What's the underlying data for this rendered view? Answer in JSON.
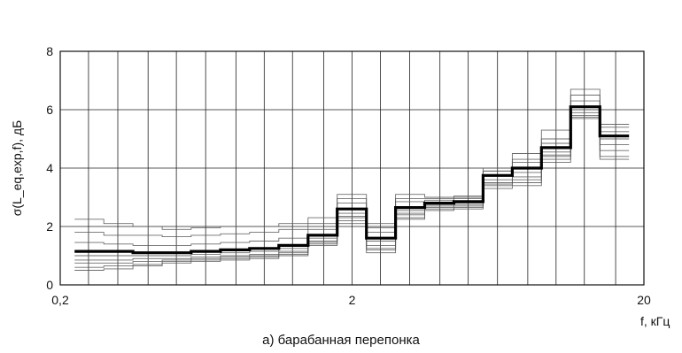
{
  "chart_data": {
    "type": "line",
    "step": true,
    "x_scale": "log",
    "xlim": [
      0.2,
      20
    ],
    "ylim": [
      0,
      8
    ],
    "x_ticks": [
      {
        "value": 0.2,
        "label": "0,2"
      },
      {
        "value": 2,
        "label": "2"
      },
      {
        "value": 20,
        "label": "20"
      }
    ],
    "y_ticks": [
      0,
      2,
      4,
      6,
      8
    ],
    "x_gridlines": [
      0.2,
      0.25,
      0.315,
      0.4,
      0.5,
      0.63,
      0.8,
      1.0,
      1.25,
      1.6,
      2,
      2.5,
      3.15,
      4.0,
      5.0,
      6.3,
      8.0,
      10.0,
      12.5,
      16.0
    ],
    "xlabel": "f, кГц",
    "ylabel": "σ(L_eq,exp,f), дБ",
    "caption": "а) барабанная перепонка",
    "grid": true,
    "band_edges": [
      0.224,
      0.282,
      0.355,
      0.447,
      0.562,
      0.708,
      0.891,
      1.122,
      1.413,
      1.778,
      2.239,
      2.818,
      3.548,
      4.467,
      5.623,
      7.079,
      8.913,
      11.22,
      14.13,
      17.78
    ],
    "series": [
      {
        "style": "thick",
        "values": [
          1.15,
          1.15,
          1.1,
          1.1,
          1.15,
          1.2,
          1.25,
          1.35,
          1.7,
          2.6,
          1.6,
          2.65,
          2.8,
          2.85,
          3.75,
          4.0,
          4.7,
          6.1,
          5.1
        ]
      },
      {
        "style": "thin",
        "values": [
          2.25,
          2.1,
          2.0,
          1.9,
          1.95,
          2.0,
          2.0,
          2.1,
          2.3,
          3.1,
          2.1,
          3.1,
          3.0,
          3.05,
          3.9,
          4.5,
          5.3,
          6.7,
          5.5
        ]
      },
      {
        "style": "thin",
        "values": [
          1.8,
          1.7,
          1.7,
          1.65,
          1.7,
          1.75,
          1.8,
          1.9,
          2.1,
          2.95,
          1.95,
          2.95,
          2.95,
          3.0,
          4.0,
          4.3,
          5.0,
          6.5,
          5.4
        ]
      },
      {
        "style": "thin",
        "values": [
          1.45,
          1.4,
          1.35,
          1.35,
          1.4,
          1.45,
          1.5,
          1.6,
          1.9,
          2.8,
          1.8,
          2.85,
          2.9,
          2.95,
          3.9,
          4.2,
          4.85,
          6.3,
          5.25
        ]
      },
      {
        "style": "thin",
        "values": [
          1.0,
          1.0,
          1.0,
          1.0,
          1.05,
          1.1,
          1.15,
          1.25,
          1.6,
          2.45,
          1.5,
          2.55,
          2.75,
          2.8,
          3.6,
          3.85,
          4.55,
          6.0,
          5.0
        ]
      },
      {
        "style": "thin",
        "values": [
          0.85,
          0.85,
          0.9,
          0.9,
          0.95,
          1.0,
          1.05,
          1.15,
          1.5,
          2.35,
          1.35,
          2.45,
          2.7,
          2.75,
          3.5,
          3.7,
          4.45,
          5.9,
          4.8
        ]
      },
      {
        "style": "thin",
        "values": [
          0.75,
          0.75,
          0.8,
          0.85,
          0.9,
          0.95,
          1.0,
          1.1,
          1.45,
          2.3,
          1.25,
          2.4,
          2.65,
          2.7,
          3.45,
          3.6,
          4.4,
          5.8,
          4.6
        ]
      },
      {
        "style": "thin",
        "values": [
          0.6,
          0.65,
          0.7,
          0.8,
          0.85,
          0.9,
          0.95,
          1.05,
          1.4,
          2.2,
          1.2,
          2.3,
          2.6,
          2.65,
          3.4,
          3.5,
          4.3,
          5.75,
          4.4
        ]
      },
      {
        "style": "thin",
        "values": [
          0.5,
          0.55,
          0.65,
          0.75,
          0.8,
          0.85,
          0.9,
          1.0,
          1.35,
          2.1,
          1.1,
          2.25,
          2.55,
          2.6,
          3.3,
          3.4,
          4.2,
          5.7,
          4.3
        ]
      }
    ]
  }
}
